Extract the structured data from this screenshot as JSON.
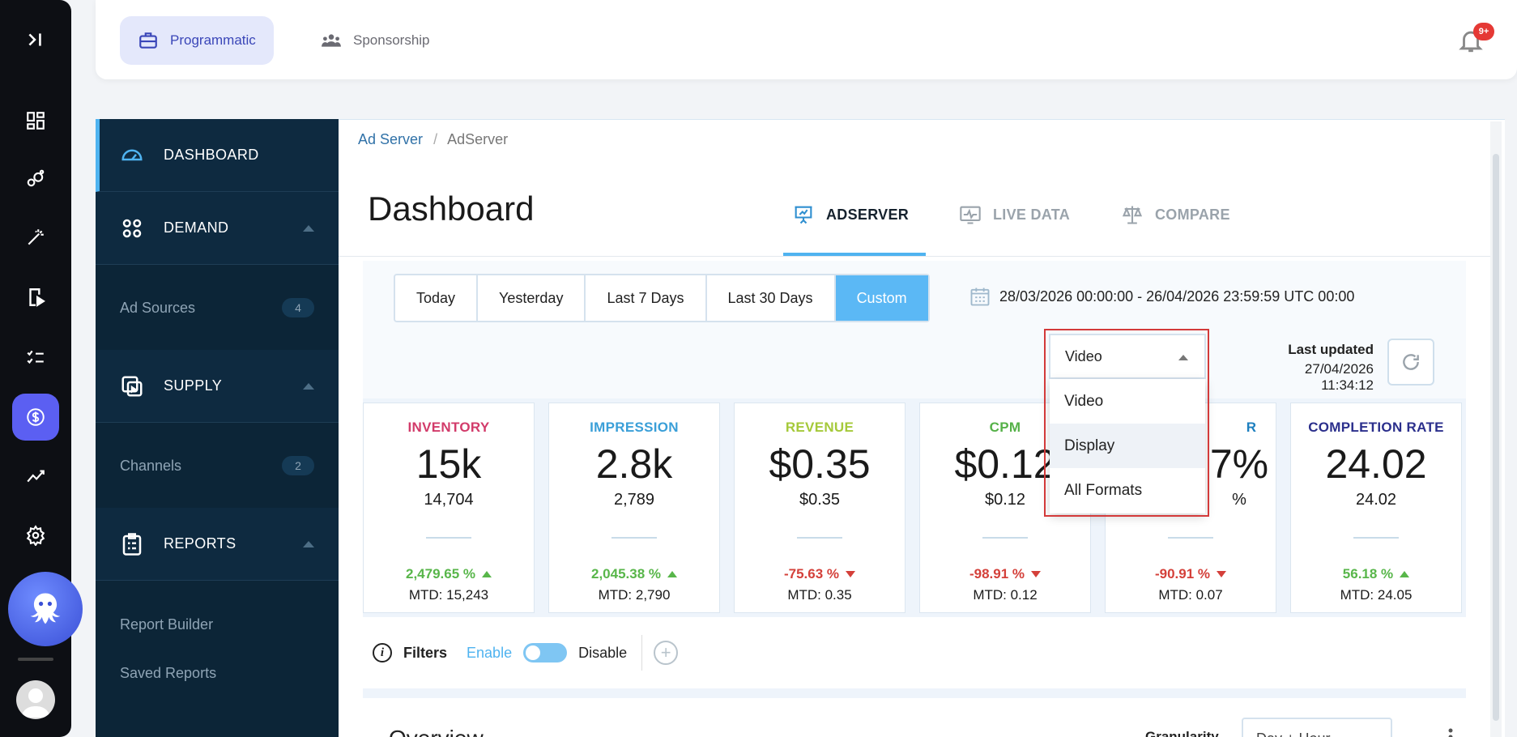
{
  "topbar": {
    "tabs": [
      {
        "label": "Programmatic",
        "active": true
      },
      {
        "label": "Sponsorship",
        "active": false
      }
    ],
    "notifications_badge": "9+"
  },
  "sidenav": {
    "dashboard": "DASHBOARD",
    "demand": "DEMAND",
    "ad_sources": {
      "label": "Ad Sources",
      "count": "4"
    },
    "supply": "SUPPLY",
    "channels": {
      "label": "Channels",
      "count": "2"
    },
    "reports": "REPORTS",
    "report_builder": "Report Builder",
    "saved_reports": "Saved Reports"
  },
  "breadcrumb": {
    "root": "Ad Server",
    "sep": "/",
    "current": "AdServer"
  },
  "page_title": "Dashboard",
  "main_tabs": [
    {
      "label": "ADSERVER",
      "active": true
    },
    {
      "label": "LIVE DATA",
      "active": false
    },
    {
      "label": "COMPARE",
      "active": false
    }
  ],
  "date_ranges": [
    "Today",
    "Yesterday",
    "Last 7 Days",
    "Last 30 Days",
    "Custom"
  ],
  "active_range": "Custom",
  "date_range_text": "28/03/2026 00:00:00 - 26/04/2026 23:59:59 UTC 00:00",
  "format_select": {
    "value": "Video",
    "options": [
      "Video",
      "Display",
      "All Formats"
    ],
    "hovered": "Display"
  },
  "last_updated": {
    "label": "Last updated",
    "value": "27/04/2026 11:34:12"
  },
  "kpis": [
    {
      "title": "INVENTORY",
      "color": "#d23b6a",
      "big": "15k",
      "small": "14,704",
      "change": "2,479.65 %",
      "trend": "up",
      "mtd": "MTD: 15,243"
    },
    {
      "title": "IMPRESSION",
      "color": "#3a9fd8",
      "big": "2.8k",
      "small": "2,789",
      "change": "2,045.38 %",
      "trend": "up",
      "mtd": "MTD: 2,790"
    },
    {
      "title": "REVENUE",
      "color": "#a5c93a",
      "big": "$0.35",
      "small": "$0.35",
      "change": "-75.63 %",
      "trend": "down",
      "mtd": "MTD: 0.35"
    },
    {
      "title": "CPM",
      "color": "#55b148",
      "big": "$0.12",
      "small": "$0.12",
      "change": "-98.91 %",
      "trend": "down",
      "mtd": "MTD: 0.12"
    },
    {
      "title": "R",
      "color": "#1d7fbf",
      "big": "7%",
      "small": "%",
      "change": "-90.91 %",
      "trend": "down",
      "mtd": "MTD: 0.07"
    },
    {
      "title": "COMPLETION RATE",
      "color": "#2b2f8c",
      "big": "24.02",
      "small": "24.02",
      "change": "56.18 %",
      "trend": "up",
      "mtd": "MTD: 24.05"
    }
  ],
  "filters": {
    "label": "Filters",
    "enable": "Enable",
    "disable": "Disable",
    "add": "+"
  },
  "overview": {
    "title": "Overview",
    "granularity_label": "Granularity",
    "granularity_value": "Day + Hour"
  }
}
